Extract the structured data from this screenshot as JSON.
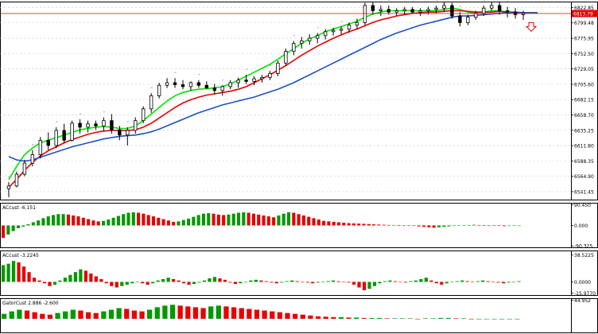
{
  "chart_data": [
    {
      "type": "candlestick",
      "panel": "price",
      "title": "",
      "current_price_label": "6813.79",
      "y_ticks": [
        "6822.85",
        "6799.48",
        "6775.95",
        "6752.50",
        "6729.05",
        "6705.60",
        "6682.15",
        "6658.70",
        "6635.25",
        "6611.80",
        "6588.35",
        "6564.90",
        "6541.45"
      ],
      "ylim": [
        6528,
        6832
      ],
      "grid": true,
      "colors": {
        "bull": "#000000",
        "bear": "#000000",
        "fast_ma": "#00e600",
        "mid_ma": "#e60000",
        "slow_ma": "#1e50c8",
        "price_line": "#e60000",
        "price_tag": "#e60000",
        "arrow": "#e60000"
      },
      "series": [
        {
          "kind": "candles",
          "values": [
            [
              6546,
              6556,
              6533,
              6550
            ],
            [
              6550,
              6572,
              6548,
              6568
            ],
            [
              6568,
              6590,
              6565,
              6585
            ],
            [
              6585,
              6605,
              6580,
              6598
            ],
            [
              6598,
              6625,
              6592,
              6620
            ],
            [
              6620,
              6632,
              6605,
              6612
            ],
            [
              6612,
              6640,
              6608,
              6635
            ],
            [
              6635,
              6645,
              6615,
              6620
            ],
            [
              6620,
              6650,
              6618,
              6646
            ],
            [
              6646,
              6652,
              6630,
              6640
            ],
            [
              6640,
              6650,
              6632,
              6645
            ],
            [
              6645,
              6650,
              6636,
              6642
            ],
            [
              6642,
              6655,
              6634,
              6650
            ],
            [
              6650,
              6660,
              6630,
              6636
            ],
            [
              6636,
              6642,
              6620,
              6628
            ],
            [
              6628,
              6640,
              6612,
              6635
            ],
            [
              6635,
              6655,
              6630,
              6650
            ],
            [
              6650,
              6672,
              6646,
              6668
            ],
            [
              6668,
              6692,
              6662,
              6688
            ],
            [
              6688,
              6708,
              6684,
              6704
            ],
            [
              6704,
              6715,
              6700,
              6708
            ],
            [
              6708,
              6715,
              6700,
              6705
            ],
            [
              6705,
              6712,
              6698,
              6702
            ],
            [
              6702,
              6710,
              6696,
              6708
            ],
            [
              6708,
              6712,
              6700,
              6704
            ],
            [
              6704,
              6710,
              6698,
              6700
            ],
            [
              6700,
              6706,
              6690,
              6696
            ],
            [
              6696,
              6704,
              6688,
              6702
            ],
            [
              6702,
              6712,
              6698,
              6708
            ],
            [
              6708,
              6716,
              6700,
              6712
            ],
            [
              6712,
              6720,
              6706,
              6710
            ],
            [
              6710,
              6718,
              6704,
              6714
            ],
            [
              6714,
              6720,
              6708,
              6716
            ],
            [
              6716,
              6726,
              6712,
              6722
            ],
            [
              6722,
              6742,
              6718,
              6738
            ],
            [
              6738,
              6760,
              6734,
              6756
            ],
            [
              6756,
              6772,
              6750,
              6768
            ],
            [
              6768,
              6778,
              6760,
              6772
            ],
            [
              6772,
              6782,
              6766,
              6776
            ],
            [
              6776,
              6784,
              6768,
              6780
            ],
            [
              6780,
              6790,
              6774,
              6786
            ],
            [
              6786,
              6792,
              6780,
              6788
            ],
            [
              6788,
              6794,
              6782,
              6790
            ],
            [
              6790,
              6800,
              6784,
              6796
            ],
            [
              6796,
              6806,
              6790,
              6800
            ],
            [
              6800,
              6830,
              6796,
              6826
            ],
            [
              6826,
              6832,
              6812,
              6818
            ],
            [
              6818,
              6826,
              6810,
              6820
            ],
            [
              6820,
              6826,
              6812,
              6816
            ],
            [
              6816,
              6822,
              6810,
              6818
            ],
            [
              6818,
              6824,
              6812,
              6820
            ],
            [
              6820,
              6824,
              6814,
              6816
            ],
            [
              6816,
              6822,
              6810,
              6818
            ],
            [
              6818,
              6824,
              6812,
              6820
            ],
            [
              6820,
              6826,
              6814,
              6822
            ],
            [
              6822,
              6832,
              6816,
              6826
            ],
            [
              6826,
              6830,
              6806,
              6810
            ],
            [
              6810,
              6816,
              6794,
              6800
            ],
            [
              6800,
              6812,
              6796,
              6808
            ],
            [
              6808,
              6818,
              6804,
              6814
            ],
            [
              6814,
              6826,
              6810,
              6822
            ],
            [
              6822,
              6832,
              6818,
              6826
            ],
            [
              6826,
              6832,
              6812,
              6818
            ],
            [
              6818,
              6824,
              6808,
              6816
            ],
            [
              6816,
              6822,
              6806,
              6812
            ],
            [
              6812,
              6818,
              6804,
              6814
            ]
          ]
        },
        {
          "kind": "line",
          "name": "",
          "values": [
            6560,
            6580,
            6598,
            6608,
            6616,
            6620,
            6624,
            6628,
            6632,
            6636,
            6638,
            6640,
            6641,
            6640,
            6638,
            6638,
            6642,
            6650,
            6660,
            6670,
            6680,
            6688,
            6693,
            6696,
            6698,
            6699,
            6700,
            6702,
            6706,
            6712,
            6718,
            6724,
            6730,
            6736,
            6744,
            6752,
            6760,
            6768,
            6775,
            6780,
            6786,
            6790,
            6794,
            6798,
            6802,
            6808,
            6813,
            6816,
            6818,
            6818,
            6818,
            6818,
            6818,
            6818,
            6818,
            6820,
            6822,
            6820,
            6816,
            6814,
            6816,
            6818,
            6818,
            6816,
            6815,
            6815
          ]
        },
        {
          "kind": "line",
          "name": "",
          "values": [
            6548,
            6560,
            6574,
            6586,
            6596,
            6604,
            6610,
            6616,
            6621,
            6625,
            6629,
            6632,
            6634,
            6635,
            6635,
            6635,
            6636,
            6640,
            6646,
            6654,
            6662,
            6670,
            6677,
            6682,
            6686,
            6689,
            6691,
            6693,
            6695,
            6698,
            6702,
            6708,
            6714,
            6720,
            6727,
            6734,
            6742,
            6750,
            6757,
            6764,
            6770,
            6776,
            6781,
            6786,
            6790,
            6795,
            6800,
            6804,
            6807,
            6810,
            6812,
            6814,
            6815,
            6816,
            6816,
            6817,
            6818,
            6818,
            6817,
            6816,
            6816,
            6816,
            6817,
            6816,
            6816,
            6815
          ]
        },
        {
          "kind": "line",
          "name": "",
          "values": [
            6595,
            6590,
            6588,
            6590,
            6594,
            6598,
            6602,
            6606,
            6610,
            6613,
            6616,
            6619,
            6622,
            6624,
            6626,
            6627,
            6628,
            6630,
            6633,
            6637,
            6642,
            6647,
            6652,
            6657,
            6662,
            6666,
            6670,
            6674,
            6677,
            6680,
            6683,
            6686,
            6690,
            6694,
            6698,
            6703,
            6708,
            6714,
            6720,
            6726,
            6732,
            6738,
            6744,
            6750,
            6756,
            6762,
            6768,
            6774,
            6779,
            6784,
            6788,
            6792,
            6796,
            6799,
            6802,
            6805,
            6808,
            6810,
            6810,
            6811,
            6812,
            6813,
            6814,
            6815,
            6815,
            6815
          ]
        }
      ]
    },
    {
      "type": "bar",
      "panel": "oscillator",
      "title": "",
      "label": "ACcust -6.151",
      "y_ticks": [
        "90.450",
        "0.000",
        "-90.325"
      ],
      "ylim": [
        -100,
        100
      ],
      "colors": {
        "up": "#009900",
        "down": "#e60000"
      },
      "values": [
        -55,
        -40,
        -25,
        -12,
        -5,
        5,
        14,
        22,
        32,
        40,
        46,
        50,
        50,
        48,
        44,
        40,
        34,
        28,
        22,
        18,
        20,
        26,
        34,
        42,
        50,
        56,
        58,
        56,
        52,
        46,
        40,
        34,
        28,
        22,
        16,
        18,
        24,
        30,
        38,
        46,
        52,
        54,
        52,
        48,
        46,
        48,
        52,
        56,
        58,
        56,
        52,
        48,
        44,
        40,
        36,
        44,
        52,
        58,
        56,
        50,
        44,
        38,
        32,
        26,
        20,
        18,
        16,
        14,
        12,
        10,
        9,
        8,
        7,
        6,
        5,
        4,
        3,
        2,
        2,
        1,
        0,
        -1,
        -2,
        -4,
        -6,
        -8,
        -10,
        -8,
        -6,
        -4,
        -2,
        0,
        1,
        2,
        3,
        2,
        1,
        0,
        -1,
        -2,
        -3,
        -2,
        -1,
        0
      ]
    },
    {
      "type": "bar",
      "panel": "oscillator",
      "title": "",
      "label": "ACcust -3.2245",
      "y_ticks": [
        "38.5225",
        "0.0000",
        "-15.9770"
      ],
      "ylim": [
        -20,
        45
      ],
      "colors": {
        "up": "#009900",
        "down": "#e60000"
      },
      "values": [
        24,
        26,
        30,
        28,
        22,
        14,
        6,
        2,
        -2,
        -6,
        -4,
        2,
        6,
        10,
        14,
        18,
        16,
        12,
        8,
        4,
        -2,
        -6,
        -8,
        -6,
        -4,
        -2,
        0,
        -2,
        -4,
        -2,
        2,
        4,
        6,
        4,
        2,
        -2,
        -4,
        -3,
        -1,
        2,
        5,
        7,
        5,
        3,
        -1,
        -3,
        -2,
        0,
        2,
        3,
        2,
        1,
        -1,
        -2,
        -1,
        1,
        2,
        1,
        0,
        -1,
        -2,
        -1,
        0,
        1,
        2,
        1,
        0,
        -1,
        -4,
        -8,
        -12,
        -10,
        -6,
        -2,
        1,
        2,
        1,
        0,
        -1,
        1,
        2,
        4,
        6,
        2,
        -2,
        -4,
        -2,
        0,
        1,
        2,
        1,
        0,
        1,
        2,
        1,
        0,
        -1,
        -2,
        -1,
        0,
        1
      ]
    },
    {
      "type": "bar",
      "panel": "oscillator",
      "title": "",
      "label": "GatorCust 2.886 -2.600",
      "y_ticks": [
        "44.952"
      ],
      "ylim": [
        -35,
        50
      ],
      "colors": {
        "up": "#009900",
        "down": "#e60000"
      },
      "values": [
        12,
        18,
        22,
        20,
        16,
        12,
        10,
        14,
        18,
        22,
        20,
        16,
        14,
        18,
        22,
        26,
        24,
        20,
        18,
        22,
        28,
        32,
        34,
        32,
        30,
        28,
        26,
        30,
        32,
        30,
        28,
        26,
        24,
        22,
        20,
        18,
        16,
        14,
        12,
        10,
        8,
        6,
        5,
        4,
        4,
        3,
        3,
        2,
        2,
        2,
        1,
        1,
        1,
        1,
        0,
        1,
        1,
        2,
        2,
        1,
        1,
        0,
        0,
        0,
        0,
        0,
        0,
        0
      ]
    }
  ]
}
